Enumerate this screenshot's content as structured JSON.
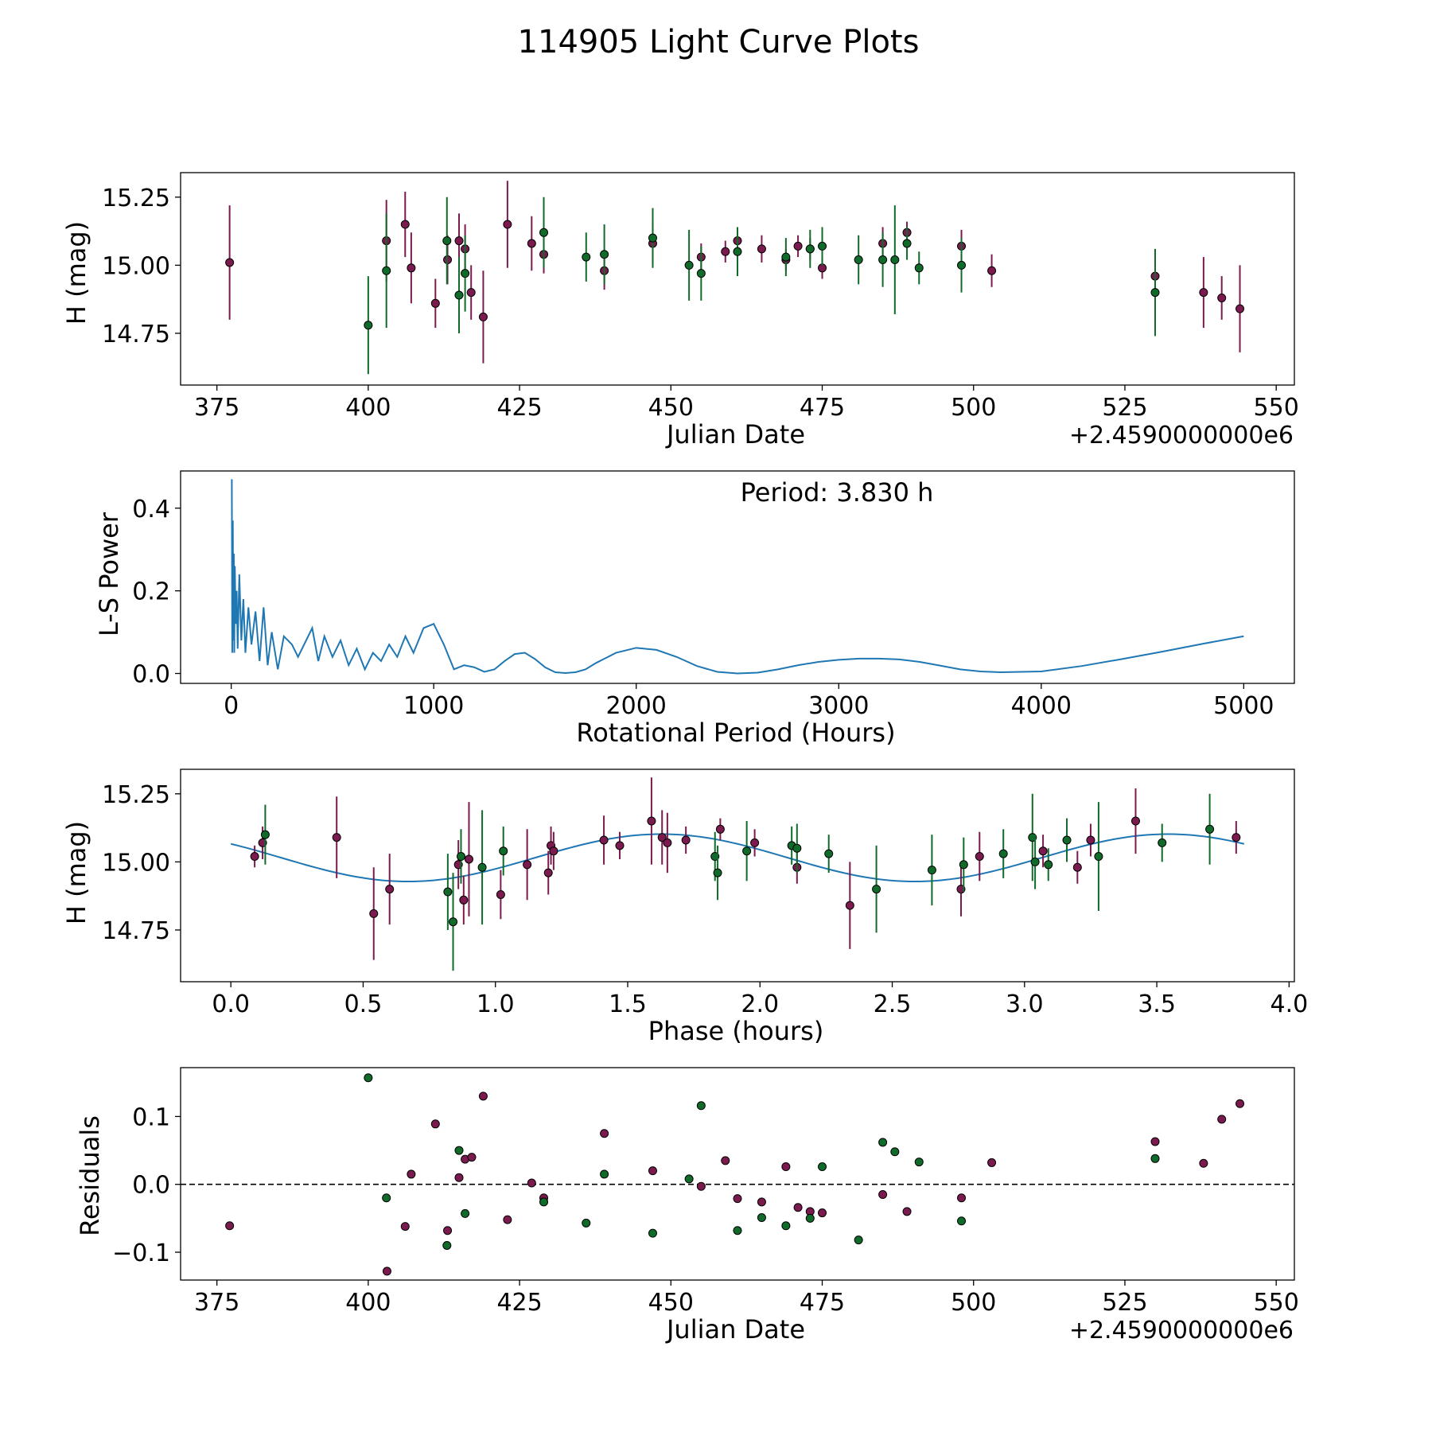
{
  "title": "114905 Light Curve Plots",
  "colors": {
    "series_a": "#7b1a4e",
    "series_b": "#106b2a",
    "curve": "#1f77b4",
    "marker_edge": "#000000"
  },
  "chart_data": [
    {
      "type": "scatter",
      "name": "light-curve",
      "xlabel": "Julian Date",
      "ylabel": "H (mag)",
      "offset_text": "+2.4590000000e6",
      "xlim": [
        369,
        553
      ],
      "ylim": [
        14.56,
        15.34
      ],
      "xticks": [
        375,
        400,
        425,
        450,
        475,
        500,
        525,
        550
      ],
      "xtick_labels": [
        "375",
        "400",
        "425",
        "450",
        "475",
        "500",
        "525",
        "550"
      ],
      "yticks": [
        14.75,
        15.0,
        15.25
      ],
      "ytick_labels": [
        "14.75",
        "15.00",
        "15.25"
      ],
      "series": [
        {
          "name": "filter-a",
          "color": "#7b1a4e",
          "points": [
            [
              377.1,
              15.01,
              0.21
            ],
            [
              403.0,
              15.09,
              0.15
            ],
            [
              406.1,
              15.15,
              0.12
            ],
            [
              407.1,
              14.99,
              0.13
            ],
            [
              411.1,
              14.86,
              0.09
            ],
            [
              413.1,
              15.02,
              0.09
            ],
            [
              415.0,
              15.09,
              0.1
            ],
            [
              416.0,
              15.06,
              0.09
            ],
            [
              417.0,
              14.9,
              0.1
            ],
            [
              419.0,
              14.81,
              0.17
            ],
            [
              423.0,
              15.15,
              0.16
            ],
            [
              427.0,
              15.08,
              0.1
            ],
            [
              429.0,
              15.04,
              0.07
            ],
            [
              439.0,
              14.98,
              0.07
            ],
            [
              447.0,
              15.08,
              0.08
            ],
            [
              455.0,
              15.03,
              0.05
            ],
            [
              459.0,
              15.05,
              0.04
            ],
            [
              461.0,
              15.09,
              0.04
            ],
            [
              465.0,
              15.06,
              0.05
            ],
            [
              469.0,
              15.02,
              0.04
            ],
            [
              471.0,
              15.07,
              0.04
            ],
            [
              473.0,
              15.06,
              0.04
            ],
            [
              475.0,
              14.99,
              0.04
            ],
            [
              485.0,
              15.08,
              0.06
            ],
            [
              489.0,
              15.12,
              0.04
            ],
            [
              498.0,
              15.07,
              0.06
            ],
            [
              503.0,
              14.98,
              0.06
            ],
            [
              530.0,
              14.96,
              0.07
            ],
            [
              538.0,
              14.9,
              0.13
            ],
            [
              541.0,
              14.88,
              0.08
            ],
            [
              544.0,
              14.84,
              0.16
            ]
          ]
        },
        {
          "name": "filter-b",
          "color": "#106b2a",
          "points": [
            [
              400.0,
              14.78,
              0.18
            ],
            [
              403.0,
              14.98,
              0.21
            ],
            [
              413.0,
              15.09,
              0.16
            ],
            [
              415.0,
              14.89,
              0.14
            ],
            [
              416.0,
              14.97,
              0.14
            ],
            [
              429.0,
              15.12,
              0.13
            ],
            [
              436.0,
              15.03,
              0.09
            ],
            [
              439.0,
              15.04,
              0.11
            ],
            [
              447.0,
              15.1,
              0.11
            ],
            [
              453.0,
              15.0,
              0.13
            ],
            [
              455.0,
              14.97,
              0.1
            ],
            [
              461.0,
              15.05,
              0.09
            ],
            [
              469.0,
              15.03,
              0.07
            ],
            [
              473.0,
              15.06,
              0.07
            ],
            [
              475.0,
              15.07,
              0.07
            ],
            [
              481.0,
              15.02,
              0.09
            ],
            [
              485.0,
              15.02,
              0.1
            ],
            [
              487.0,
              15.02,
              0.2
            ],
            [
              489.0,
              15.08,
              0.06
            ],
            [
              491.0,
              14.99,
              0.06
            ],
            [
              498.0,
              15.0,
              0.1
            ],
            [
              530.0,
              14.9,
              0.16
            ]
          ]
        }
      ]
    },
    {
      "type": "line",
      "name": "periodogram",
      "xlabel": "Rotational Period (Hours)",
      "ylabel": "L-S Power",
      "annotation": "Period: 3.830 h",
      "xlim": [
        -250,
        5250
      ],
      "ylim": [
        -0.024,
        0.49
      ],
      "xticks": [
        0,
        1000,
        2000,
        3000,
        4000,
        5000
      ],
      "xtick_labels": [
        "0",
        "1000",
        "2000",
        "3000",
        "4000",
        "5000"
      ],
      "yticks": [
        0.0,
        0.2,
        0.4
      ],
      "ytick_labels": [
        "0.0",
        "0.2",
        "0.4"
      ],
      "x": [
        3,
        5,
        8,
        10,
        13,
        15,
        18,
        22,
        27,
        32,
        40,
        50,
        60,
        70,
        85,
        100,
        120,
        140,
        160,
        180,
        200,
        230,
        260,
        300,
        330,
        360,
        400,
        430,
        460,
        500,
        540,
        580,
        620,
        660,
        700,
        740,
        780,
        820,
        860,
        900,
        950,
        1000,
        1050,
        1100,
        1150,
        1200,
        1250,
        1300,
        1350,
        1400,
        1450,
        1500,
        1550,
        1600,
        1650,
        1700,
        1750,
        1800,
        1900,
        2000,
        2100,
        2200,
        2300,
        2400,
        2500,
        2600,
        2700,
        2800,
        2900,
        3000,
        3100,
        3200,
        3300,
        3400,
        3500,
        3600,
        3700,
        3800,
        3900,
        4000,
        4200,
        4400,
        4600,
        4800,
        5000
      ],
      "values": [
        0.47,
        0.05,
        0.37,
        0.08,
        0.29,
        0.05,
        0.26,
        0.12,
        0.2,
        0.06,
        0.24,
        0.08,
        0.18,
        0.05,
        0.16,
        0.07,
        0.15,
        0.03,
        0.16,
        0.02,
        0.1,
        0.01,
        0.09,
        0.07,
        0.04,
        0.07,
        0.11,
        0.03,
        0.09,
        0.04,
        0.08,
        0.02,
        0.06,
        0.01,
        0.05,
        0.03,
        0.07,
        0.04,
        0.09,
        0.05,
        0.11,
        0.12,
        0.07,
        0.01,
        0.02,
        0.015,
        0.004,
        0.01,
        0.03,
        0.047,
        0.05,
        0.035,
        0.015,
        0.003,
        0.001,
        0.003,
        0.01,
        0.025,
        0.05,
        0.062,
        0.057,
        0.04,
        0.018,
        0.004,
        0.0,
        0.002,
        0.01,
        0.02,
        0.028,
        0.033,
        0.036,
        0.036,
        0.034,
        0.028,
        0.019,
        0.01,
        0.005,
        0.003,
        0.004,
        0.005,
        0.018,
        0.035,
        0.053,
        0.072,
        0.09
      ]
    },
    {
      "type": "scatter",
      "name": "phase-folded",
      "xlabel": "Phase (hours)",
      "ylabel": "H (mag)",
      "xlim": [
        -0.19,
        4.02
      ],
      "ylim": [
        14.56,
        15.34
      ],
      "xticks": [
        0.0,
        0.5,
        1.0,
        1.5,
        2.0,
        2.5,
        3.0,
        3.5,
        4.0
      ],
      "xtick_labels": [
        "0.0",
        "0.5",
        "1.0",
        "1.5",
        "2.0",
        "2.5",
        "3.0",
        "3.5",
        "4.0"
      ],
      "yticks": [
        14.75,
        15.0,
        15.25
      ],
      "ytick_labels": [
        "14.75",
        "15.00",
        "15.25"
      ],
      "model": {
        "mean": 15.015,
        "amplitude": 0.087,
        "phase_offset": 0.67,
        "period": 1.915,
        "x_end": 3.83
      },
      "series": [
        {
          "name": "filter-a",
          "color": "#7b1a4e",
          "points": [
            [
              0.09,
              15.02,
              0.04
            ],
            [
              0.12,
              15.07,
              0.06
            ],
            [
              0.4,
              15.09,
              0.15
            ],
            [
              0.54,
              14.81,
              0.17
            ],
            [
              0.6,
              14.9,
              0.13
            ],
            [
              0.86,
              14.99,
              0.09
            ],
            [
              0.88,
              14.86,
              0.09
            ],
            [
              0.9,
              15.01,
              0.21
            ],
            [
              1.02,
              14.88,
              0.09
            ],
            [
              1.12,
              14.99,
              0.13
            ],
            [
              1.2,
              14.96,
              0.08
            ],
            [
              1.21,
              15.06,
              0.07
            ],
            [
              1.22,
              15.04,
              0.07
            ],
            [
              1.41,
              15.08,
              0.09
            ],
            [
              1.47,
              15.06,
              0.05
            ],
            [
              1.59,
              15.15,
              0.16
            ],
            [
              1.63,
              15.09,
              0.1
            ],
            [
              1.65,
              15.07,
              0.11
            ],
            [
              1.72,
              15.08,
              0.05
            ],
            [
              1.85,
              15.12,
              0.04
            ],
            [
              1.98,
              15.07,
              0.05
            ],
            [
              2.14,
              14.98,
              0.06
            ],
            [
              2.34,
              14.84,
              0.16
            ],
            [
              2.76,
              14.9,
              0.1
            ],
            [
              2.83,
              15.02,
              0.09
            ],
            [
              3.07,
              15.04,
              0.06
            ],
            [
              3.2,
              14.98,
              0.06
            ],
            [
              3.25,
              15.08,
              0.06
            ],
            [
              3.42,
              15.15,
              0.12
            ],
            [
              3.8,
              15.09,
              0.06
            ]
          ]
        },
        {
          "name": "filter-b",
          "color": "#106b2a",
          "points": [
            [
              0.13,
              15.1,
              0.11
            ],
            [
              0.82,
              14.89,
              0.14
            ],
            [
              0.84,
              14.78,
              0.18
            ],
            [
              0.87,
              15.02,
              0.1
            ],
            [
              0.95,
              14.98,
              0.21
            ],
            [
              1.03,
              15.04,
              0.09
            ],
            [
              1.83,
              15.02,
              0.09
            ],
            [
              1.84,
              14.96,
              0.1
            ],
            [
              1.95,
              15.04,
              0.11
            ],
            [
              2.12,
              15.06,
              0.07
            ],
            [
              2.14,
              15.05,
              0.09
            ],
            [
              2.26,
              15.03,
              0.07
            ],
            [
              2.44,
              14.9,
              0.16
            ],
            [
              2.65,
              14.97,
              0.13
            ],
            [
              2.77,
              14.99,
              0.1
            ],
            [
              2.92,
              15.03,
              0.09
            ],
            [
              3.03,
              15.09,
              0.16
            ],
            [
              3.04,
              15.0,
              0.1
            ],
            [
              3.09,
              14.99,
              0.06
            ],
            [
              3.16,
              15.08,
              0.08
            ],
            [
              3.28,
              15.02,
              0.2
            ],
            [
              3.52,
              15.07,
              0.07
            ],
            [
              3.7,
              15.12,
              0.13
            ]
          ]
        }
      ]
    },
    {
      "type": "scatter",
      "name": "residuals",
      "xlabel": "Julian Date",
      "ylabel": "Residuals",
      "offset_text": "+2.4590000000e6",
      "xlim": [
        369,
        553
      ],
      "ylim": [
        -0.141,
        0.172
      ],
      "xticks": [
        375,
        400,
        425,
        450,
        475,
        500,
        525,
        550
      ],
      "xtick_labels": [
        "375",
        "400",
        "425",
        "450",
        "475",
        "500",
        "525",
        "550"
      ],
      "yticks": [
        -0.1,
        0.0,
        0.1
      ],
      "ytick_labels": [
        "−0.1",
        "0.0",
        "0.1"
      ],
      "reference_line": 0.0,
      "series": [
        {
          "name": "filter-a",
          "color": "#7b1a4e",
          "points": [
            [
              377.1,
              -0.061
            ],
            [
              403.1,
              -0.128
            ],
            [
              406.1,
              -0.062
            ],
            [
              407.1,
              0.015
            ],
            [
              411.1,
              0.089
            ],
            [
              413.1,
              -0.068
            ],
            [
              415.0,
              0.01
            ],
            [
              416.0,
              0.037
            ],
            [
              417.1,
              0.04
            ],
            [
              419.0,
              0.13
            ],
            [
              423.0,
              -0.052
            ],
            [
              427.0,
              0.002
            ],
            [
              429.0,
              -0.02
            ],
            [
              439.0,
              0.075
            ],
            [
              447.0,
              0.02
            ],
            [
              455.0,
              -0.003
            ],
            [
              459.0,
              0.035
            ],
            [
              461.0,
              -0.021
            ],
            [
              465.0,
              -0.026
            ],
            [
              469.0,
              0.026
            ],
            [
              471.0,
              -0.034
            ],
            [
              473.0,
              -0.04
            ],
            [
              475.0,
              -0.042
            ],
            [
              485.0,
              -0.015
            ],
            [
              489.0,
              -0.04
            ],
            [
              498.0,
              -0.02
            ],
            [
              503.0,
              0.032
            ],
            [
              530.0,
              0.063
            ],
            [
              538.0,
              0.031
            ],
            [
              541.0,
              0.096
            ],
            [
              544.0,
              0.119
            ]
          ]
        },
        {
          "name": "filter-b",
          "color": "#106b2a",
          "points": [
            [
              400.0,
              0.157
            ],
            [
              403.0,
              -0.02
            ],
            [
              413.0,
              -0.09
            ],
            [
              415.0,
              0.05
            ],
            [
              416.0,
              -0.043
            ],
            [
              429.0,
              -0.026
            ],
            [
              436.0,
              -0.057
            ],
            [
              439.0,
              0.015
            ],
            [
              447.0,
              -0.072
            ],
            [
              453.0,
              0.008
            ],
            [
              455.0,
              0.116
            ],
            [
              461.0,
              -0.068
            ],
            [
              465.0,
              -0.049
            ],
            [
              469.0,
              -0.061
            ],
            [
              473.0,
              -0.05
            ],
            [
              475.0,
              0.026
            ],
            [
              481.0,
              -0.082
            ],
            [
              485.0,
              0.062
            ],
            [
              487.0,
              0.048
            ],
            [
              491.0,
              0.033
            ],
            [
              498.0,
              -0.054
            ],
            [
              530.0,
              0.038
            ]
          ]
        }
      ]
    }
  ]
}
